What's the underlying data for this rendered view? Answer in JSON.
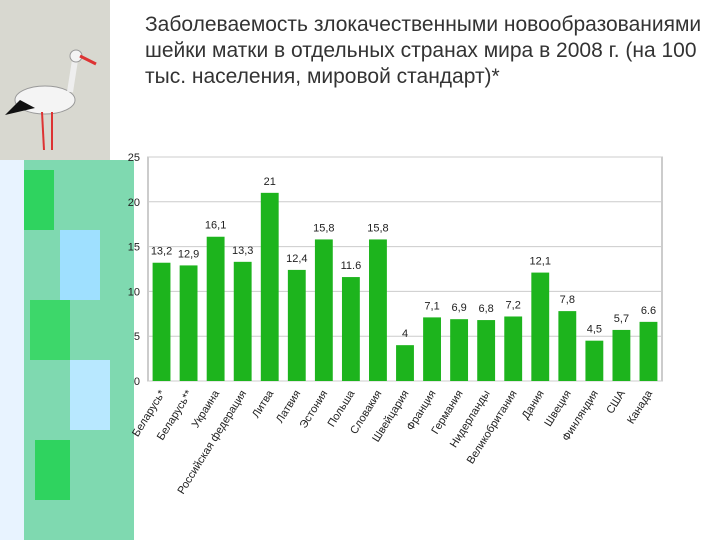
{
  "chart_data": {
    "type": "bar",
    "title": "Заболеваемость злокачественными новообразованиями шейки матки в отдельных странах мира в 2008 г.  (на 100 тыс. населения, мировой стандарт)*",
    "categories": [
      "Беларусь*",
      "Беларусь**",
      "Украина",
      "Российская федерация",
      "Литва",
      "Латвия",
      "Эстония",
      "Польша",
      "Словакия",
      "Швейцария",
      "Франция",
      "Германия",
      "Нидерланды",
      "Великобритания",
      "Дания",
      "Швеция",
      "Финляндия",
      "США",
      "Канада"
    ],
    "values": [
      13.2,
      12.9,
      16.1,
      13.3,
      21,
      12.4,
      15.8,
      11.6,
      15.8,
      4,
      7.1,
      6.9,
      6.8,
      7.2,
      12.1,
      7.8,
      4.5,
      5.7,
      6.6
    ],
    "value_labels": [
      "13,2",
      "12,9",
      "16,1",
      "13,3",
      "21",
      "12,4",
      "15,8",
      "11.6",
      "15,8",
      "4",
      "7,1",
      "6,9",
      "6,8",
      "7,2",
      "12,1",
      "7,8",
      "4,5",
      "5,7",
      "6.6"
    ],
    "color": "#1db41d",
    "ylim": [
      0,
      25
    ],
    "yticks": [
      0,
      5,
      10,
      15,
      20,
      25
    ],
    "grid": true
  }
}
